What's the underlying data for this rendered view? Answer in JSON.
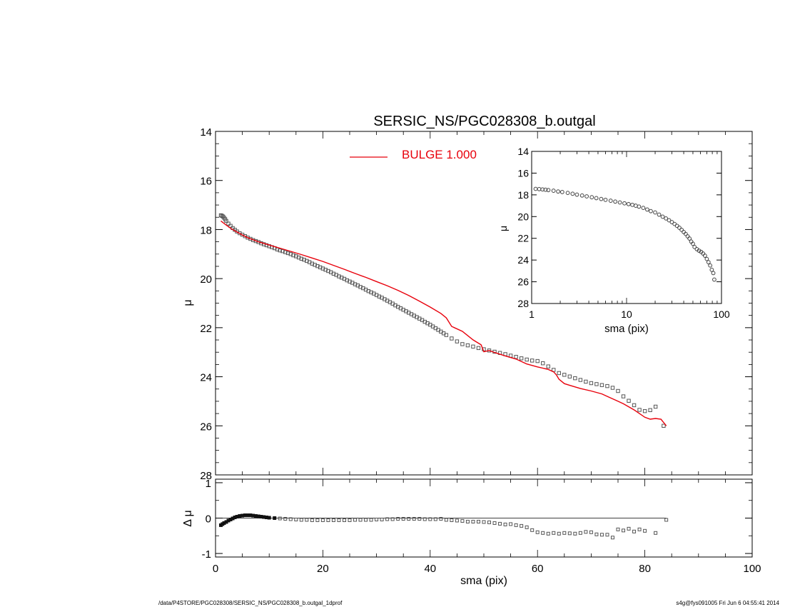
{
  "chart_data": [
    {
      "id": "main",
      "type": "scatter",
      "title": "SERSIC_NS/PGC028308_b.outgal",
      "ylabel": "μ",
      "xlim": [
        0,
        100
      ],
      "ylim": [
        28,
        14
      ],
      "y_inverted": true,
      "yticks": [
        14,
        16,
        18,
        20,
        22,
        24,
        26,
        28
      ],
      "legend": {
        "label": "BULGE  1.000",
        "color": "#e8000b",
        "placement": "top-center"
      },
      "series": [
        {
          "kind": "points",
          "x": [
            1.0,
            1.2,
            1.4,
            1.6,
            1.8,
            2.0,
            2.4,
            2.8,
            3.2,
            3.6,
            4.0,
            4.5,
            5.0,
            5.5,
            6.0,
            6.5,
            7.0,
            7.5,
            8.0,
            8.5,
            9.0,
            9.5,
            10.0,
            10.5,
            11.0,
            11.5,
            12.0,
            12.5,
            13.0,
            13.5,
            14.0,
            14.5,
            15.0,
            15.5,
            16.0,
            16.5,
            17.0,
            17.5,
            18.0,
            18.5,
            19.0,
            19.5,
            20.0,
            20.5,
            21.0,
            21.5,
            22.0,
            22.5,
            23.0,
            23.5,
            24.0,
            24.5,
            25.0,
            25.5,
            26.0,
            26.5,
            27.0,
            27.5,
            28.0,
            28.5,
            29.0,
            29.5,
            30.0,
            30.5,
            31.0,
            31.5,
            32.0,
            32.5,
            33.0,
            33.5,
            34.0,
            34.5,
            35.0,
            35.5,
            36.0,
            36.5,
            37.0,
            37.5,
            38.0,
            38.5,
            39.0,
            39.5,
            40.0,
            40.5,
            41.0,
            41.5,
            42.0,
            42.5,
            43.0,
            44.0,
            45.0,
            46.0,
            47.0,
            48.0,
            49.0,
            50.0,
            51.0,
            52.0,
            53.0,
            54.0,
            55.0,
            56.0,
            57.0,
            58.0,
            59.0,
            60.0,
            61.0,
            62.0,
            63.0,
            64.0,
            65.0,
            66.0,
            67.0,
            68.0,
            69.0,
            70.0,
            71.0,
            72.0,
            73.0,
            74.0,
            75.0,
            76.0,
            77.0,
            78.0,
            79.0,
            80.0,
            81.0,
            82.0,
            83.5
          ],
          "y": [
            17.42,
            17.44,
            17.47,
            17.52,
            17.58,
            17.65,
            17.76,
            17.85,
            17.94,
            18.01,
            18.08,
            18.15,
            18.21,
            18.27,
            18.33,
            18.38,
            18.43,
            18.47,
            18.51,
            18.56,
            18.6,
            18.64,
            18.68,
            18.72,
            18.76,
            18.81,
            18.85,
            18.88,
            18.92,
            18.96,
            19.0,
            19.05,
            19.09,
            19.14,
            19.19,
            19.23,
            19.28,
            19.33,
            19.39,
            19.44,
            19.49,
            19.54,
            19.59,
            19.64,
            19.69,
            19.74,
            19.8,
            19.85,
            19.91,
            19.96,
            20.01,
            20.07,
            20.12,
            20.17,
            20.23,
            20.28,
            20.34,
            20.39,
            20.45,
            20.51,
            20.56,
            20.61,
            20.67,
            20.73,
            20.78,
            20.84,
            20.9,
            20.96,
            21.02,
            21.09,
            21.15,
            21.21,
            21.27,
            21.33,
            21.39,
            21.45,
            21.51,
            21.57,
            21.63,
            21.69,
            21.76,
            21.82,
            21.88,
            21.95,
            22.02,
            22.09,
            22.16,
            22.23,
            22.3,
            22.44,
            22.56,
            22.67,
            22.72,
            22.77,
            22.83,
            22.88,
            22.93,
            22.98,
            23.03,
            23.08,
            23.14,
            23.19,
            23.25,
            23.3,
            23.34,
            23.36,
            23.45,
            23.58,
            23.72,
            23.85,
            23.92,
            23.99,
            24.06,
            24.13,
            24.2,
            24.26,
            24.3,
            24.34,
            24.38,
            24.45,
            24.58,
            24.8,
            24.98,
            25.16,
            25.35,
            25.4,
            25.36,
            25.22,
            26.0
          ]
        },
        {
          "kind": "line",
          "name": "BULGE  1.000",
          "color": "#e8000b",
          "x": [
            1.0,
            2.0,
            3.0,
            4.0,
            5.0,
            6.0,
            8.0,
            10.0,
            12.0,
            14.0,
            16.0,
            18.0,
            20.0,
            22.0,
            24.0,
            26.0,
            28.0,
            30.0,
            32.0,
            34.0,
            36.0,
            38.0,
            40.0,
            42.0,
            43.0,
            44.0,
            46.0,
            48.0,
            49.5,
            50.0,
            51.0,
            52.0,
            54.0,
            56.0,
            58.0,
            60.0,
            62.0,
            63.0,
            63.5,
            64.0,
            65.0,
            66.0,
            68.0,
            70.0,
            72.0,
            73.0,
            74.0,
            75.0,
            76.0,
            78.0,
            80.0,
            81.0,
            82.0,
            83.0,
            84.0
          ],
          "y": [
            17.65,
            17.82,
            17.98,
            18.1,
            18.22,
            18.33,
            18.5,
            18.63,
            18.76,
            18.89,
            19.02,
            19.16,
            19.3,
            19.46,
            19.62,
            19.79,
            19.95,
            20.12,
            20.29,
            20.48,
            20.69,
            20.92,
            21.16,
            21.42,
            21.6,
            21.95,
            22.15,
            22.5,
            22.7,
            22.98,
            22.93,
            23.01,
            23.15,
            23.28,
            23.48,
            23.6,
            23.7,
            23.8,
            23.92,
            24.1,
            24.28,
            24.35,
            24.48,
            24.58,
            24.7,
            24.8,
            24.9,
            25.0,
            25.1,
            25.35,
            25.65,
            25.73,
            25.7,
            25.73,
            26.0
          ]
        }
      ]
    },
    {
      "id": "inset",
      "type": "scatter",
      "xlabel": "sma (pix)",
      "ylabel": "μ",
      "x_scale": "log",
      "xlim": [
        1,
        100
      ],
      "ylim": [
        28,
        14
      ],
      "y_inverted": true,
      "xticks": [
        1,
        10,
        100
      ],
      "yticks": [
        14,
        16,
        18,
        20,
        22,
        24,
        26,
        28
      ],
      "series": [
        {
          "kind": "points",
          "x": [
            1.1,
            1.2,
            1.3,
            1.4,
            1.5,
            1.7,
            1.9,
            2.1,
            2.4,
            2.7,
            3.0,
            3.4,
            3.8,
            4.3,
            4.8,
            5.4,
            6.0,
            6.8,
            7.6,
            8.5,
            9.5,
            10.5,
            11.5,
            12.5,
            13.5,
            15.0,
            16.5,
            18.0,
            20.0,
            22.0,
            24.0,
            26.0,
            28.0,
            30.0,
            32.0,
            34.0,
            36.0,
            38.0,
            40.0,
            42.0,
            44.0,
            46.0,
            48.0,
            50.0,
            52.0,
            55.0,
            58.0,
            61.0,
            64.0,
            67.0,
            70.0,
            73.0,
            76.0,
            79.0,
            82.0,
            84.0
          ],
          "y": [
            17.45,
            17.47,
            17.5,
            17.53,
            17.56,
            17.62,
            17.69,
            17.74,
            17.82,
            17.9,
            17.98,
            18.06,
            18.14,
            18.22,
            18.3,
            18.38,
            18.46,
            18.54,
            18.62,
            18.7,
            18.78,
            18.85,
            18.92,
            19.0,
            19.08,
            19.2,
            19.35,
            19.5,
            19.62,
            19.82,
            20.01,
            20.17,
            20.34,
            20.51,
            20.68,
            20.85,
            21.03,
            21.22,
            21.42,
            21.6,
            21.82,
            22.02,
            22.3,
            22.5,
            22.8,
            23.0,
            23.14,
            23.25,
            23.4,
            23.6,
            23.9,
            24.2,
            24.5,
            24.9,
            25.2,
            25.8
          ]
        }
      ]
    },
    {
      "id": "residual",
      "type": "scatter",
      "xlabel": "sma (pix)",
      "ylabel": "Δ μ",
      "xlim": [
        0,
        100
      ],
      "ylim": [
        -1.1,
        1.1
      ],
      "xticks": [
        0,
        20,
        40,
        60,
        80,
        100
      ],
      "yticks": [
        -1,
        0,
        1
      ],
      "series": [
        {
          "kind": "points",
          "x": [
            1.0,
            1.3,
            1.6,
            2.0,
            2.4,
            2.8,
            3.2,
            3.6,
            4.0,
            4.5,
            5.0,
            5.5,
            6.0,
            6.5,
            7.0,
            7.5,
            8.0,
            8.5,
            9.0,
            9.5,
            10.0,
            11.0,
            12.0,
            13.0,
            14.0,
            15.0,
            16.0,
            17.0,
            18.0,
            19.0,
            20.0,
            21.0,
            22.0,
            23.0,
            24.0,
            25.0,
            26.0,
            27.0,
            28.0,
            29.0,
            30.0,
            31.0,
            32.0,
            33.0,
            34.0,
            35.0,
            36.0,
            37.0,
            38.0,
            39.0,
            40.0,
            41.0,
            42.0,
            43.0,
            44.0,
            45.0,
            46.0,
            47.0,
            48.0,
            49.0,
            50.0,
            51.0,
            52.0,
            53.0,
            54.0,
            55.0,
            56.0,
            57.0,
            58.0,
            59.0,
            60.0,
            61.0,
            62.0,
            63.0,
            64.0,
            65.0,
            66.0,
            67.0,
            68.0,
            69.0,
            70.0,
            71.0,
            72.0,
            73.0,
            74.0,
            75.0,
            76.0,
            77.0,
            78.0,
            79.0,
            80.0,
            82.0,
            84.0
          ],
          "y": [
            -0.2,
            -0.17,
            -0.14,
            -0.11,
            -0.07,
            -0.04,
            -0.01,
            0.02,
            0.04,
            0.06,
            0.07,
            0.08,
            0.08,
            0.08,
            0.07,
            0.06,
            0.05,
            0.04,
            0.03,
            0.02,
            0.01,
            0.0,
            -0.01,
            -0.02,
            -0.03,
            -0.04,
            -0.05,
            -0.05,
            -0.06,
            -0.06,
            -0.06,
            -0.06,
            -0.06,
            -0.06,
            -0.06,
            -0.06,
            -0.05,
            -0.05,
            -0.05,
            -0.05,
            -0.04,
            -0.04,
            -0.03,
            -0.03,
            -0.02,
            -0.02,
            -0.02,
            -0.02,
            -0.02,
            -0.03,
            -0.03,
            -0.03,
            -0.02,
            -0.05,
            -0.06,
            -0.07,
            -0.08,
            -0.1,
            -0.1,
            -0.1,
            -0.11,
            -0.12,
            -0.14,
            -0.16,
            -0.18,
            -0.17,
            -0.2,
            -0.22,
            -0.26,
            -0.34,
            -0.4,
            -0.42,
            -0.44,
            -0.42,
            -0.44,
            -0.42,
            -0.43,
            -0.44,
            -0.42,
            -0.39,
            -0.4,
            -0.46,
            -0.47,
            -0.47,
            -0.55,
            -0.32,
            -0.35,
            -0.3,
            -0.38,
            -0.32,
            -0.36,
            -0.42,
            -0.05
          ]
        }
      ]
    }
  ],
  "footer": {
    "path": "/data/P4STORE/PGC028308/SERSIC_NS/PGC028308_b.outgal_1dprof",
    "stamp": "s4g@fys091005  Fri Jun  6 04:55:41 2014"
  }
}
